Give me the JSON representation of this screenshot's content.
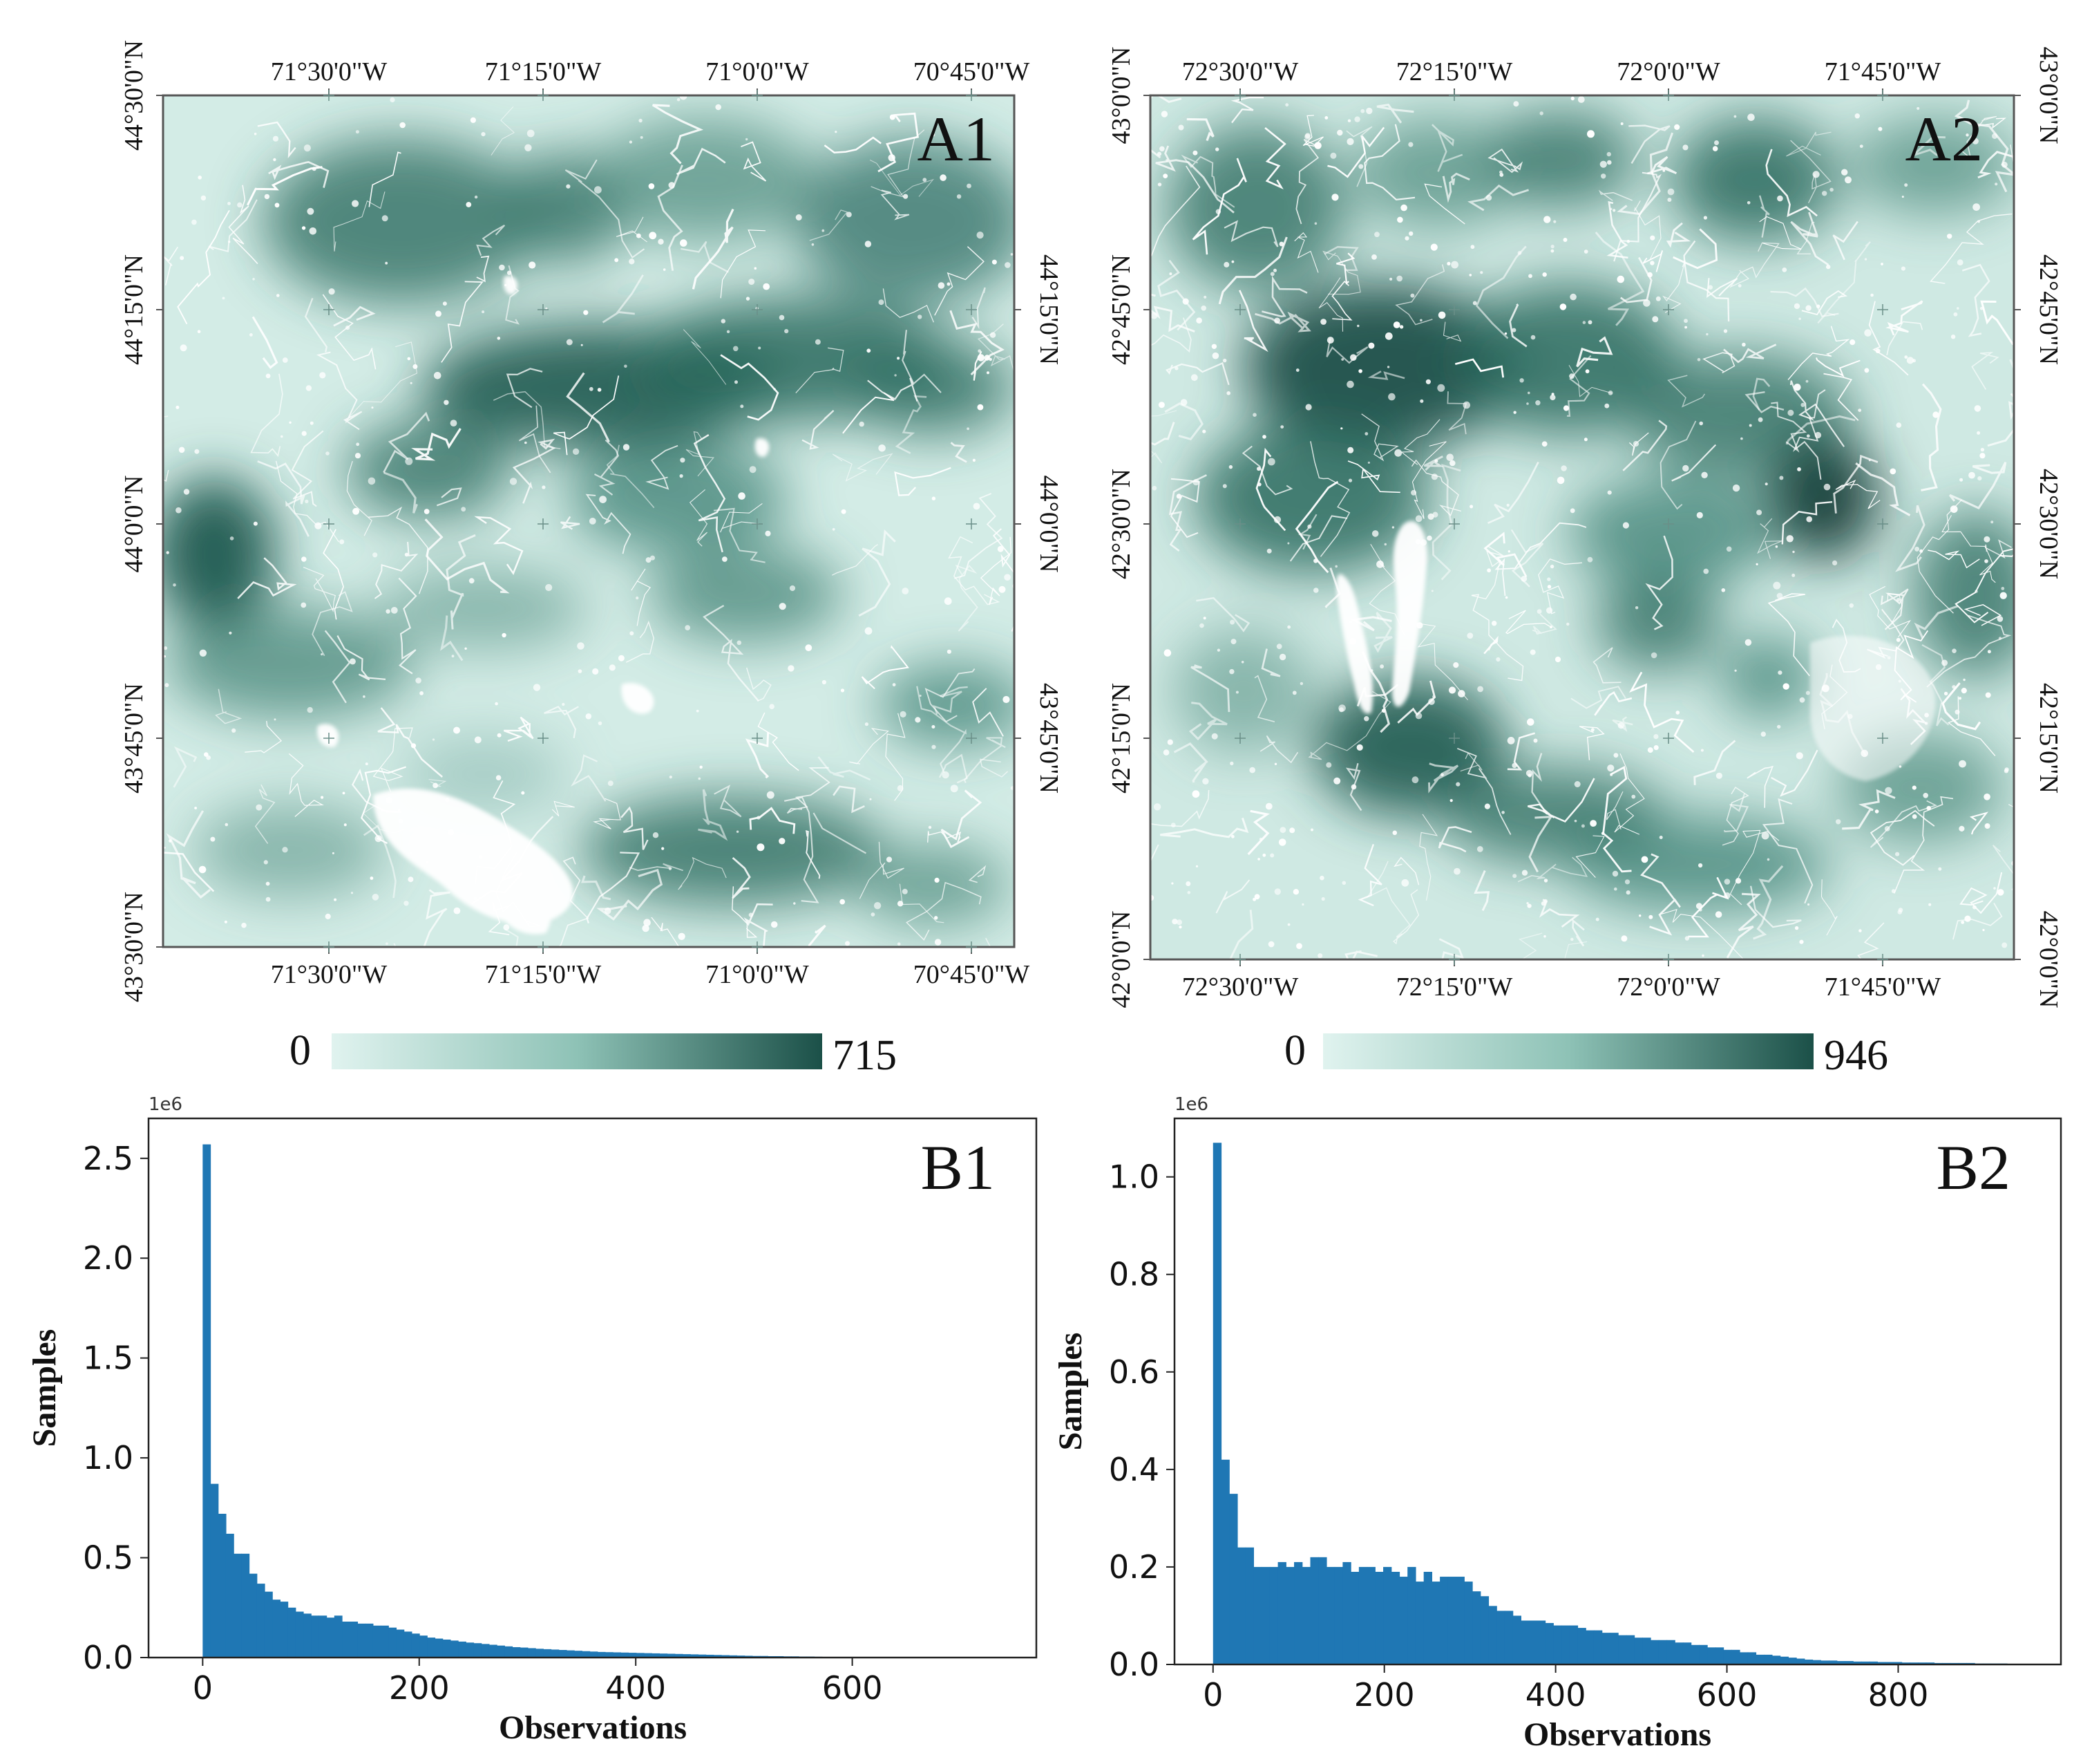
{
  "colors": {
    "map_low": "#e0f3ef",
    "map_high": "#1b5048",
    "bar": "#1f77b4",
    "frame": "#444444"
  },
  "chart_data": [
    {
      "id": "A1",
      "type": "heatmap",
      "panel_label": "A1",
      "x_ticks": [
        "71°30'0\"W",
        "71°15'0\"W",
        "71°0'0\"W",
        "70°45'0\"W"
      ],
      "y_ticks": [
        "44°30'0\"N",
        "44°15'0\"N",
        "44°0'0\"N",
        "43°45'0\"N",
        "43°30'0\"N"
      ],
      "y_ticks_right": [
        "44°15'0\"N",
        "44°0'0\"N",
        "43°45'0\"N"
      ],
      "colorbar": {
        "min": "0",
        "max": "715"
      }
    },
    {
      "id": "A2",
      "type": "heatmap",
      "panel_label": "A2",
      "x_ticks": [
        "72°30'0\"W",
        "72°15'0\"W",
        "72°0'0\"W",
        "71°45'0\"W"
      ],
      "y_ticks": [
        "43°0'0\"N",
        "42°45'0\"N",
        "42°30'0\"N",
        "42°15'0\"N",
        "42°0'0\"N"
      ],
      "y_ticks_right": [
        "43°0'0\"N",
        "42°45'0\"N",
        "42°30'0\"N",
        "42°15'0\"N",
        "42°0'0\"N"
      ],
      "colorbar": {
        "min": "0",
        "max": "946"
      }
    },
    {
      "id": "B1",
      "type": "bar",
      "panel_label": "B1",
      "xlabel": "Observations",
      "ylabel": "Samples",
      "y_multiplier": "1e6",
      "xlim": [
        -50,
        770
      ],
      "ylim": [
        0,
        2.7
      ],
      "x_ticks": [
        0,
        200,
        400,
        600
      ],
      "y_ticks": [
        "0.0",
        "0.5",
        "1.0",
        "1.5",
        "2.0",
        "2.5"
      ],
      "bin_width": 7.15,
      "values": [
        2.57,
        0.87,
        0.72,
        0.62,
        0.52,
        0.52,
        0.42,
        0.37,
        0.33,
        0.29,
        0.28,
        0.25,
        0.23,
        0.22,
        0.21,
        0.21,
        0.2,
        0.21,
        0.18,
        0.18,
        0.17,
        0.17,
        0.16,
        0.16,
        0.15,
        0.14,
        0.13,
        0.12,
        0.11,
        0.1,
        0.095,
        0.09,
        0.085,
        0.08,
        0.075,
        0.072,
        0.068,
        0.064,
        0.06,
        0.056,
        0.052,
        0.05,
        0.047,
        0.044,
        0.042,
        0.04,
        0.038,
        0.036,
        0.034,
        0.032,
        0.03,
        0.028,
        0.027,
        0.026,
        0.025,
        0.024,
        0.023,
        0.022,
        0.021,
        0.02,
        0.019,
        0.018,
        0.017,
        0.016,
        0.015,
        0.014,
        0.013,
        0.012,
        0.011,
        0.01,
        0.009,
        0.008,
        0.008,
        0.007,
        0.007,
        0.006,
        0.006,
        0.005,
        0.005,
        0.004
      ]
    },
    {
      "id": "B2",
      "type": "bar",
      "panel_label": "B2",
      "xlabel": "Observations",
      "ylabel": "Samples",
      "y_multiplier": "1e6",
      "xlim": [
        -45,
        990
      ],
      "ylim": [
        0,
        1.12
      ],
      "x_ticks": [
        0,
        200,
        400,
        600,
        800
      ],
      "y_ticks": [
        "0.0",
        "0.2",
        "0.4",
        "0.6",
        "0.8",
        "1.0"
      ],
      "bin_width": 9.46,
      "values": [
        1.07,
        0.42,
        0.35,
        0.24,
        0.24,
        0.2,
        0.2,
        0.2,
        0.21,
        0.2,
        0.21,
        0.2,
        0.22,
        0.22,
        0.2,
        0.2,
        0.21,
        0.19,
        0.2,
        0.2,
        0.19,
        0.2,
        0.19,
        0.18,
        0.2,
        0.17,
        0.19,
        0.17,
        0.18,
        0.18,
        0.18,
        0.17,
        0.15,
        0.14,
        0.12,
        0.11,
        0.11,
        0.1,
        0.09,
        0.09,
        0.09,
        0.085,
        0.08,
        0.08,
        0.08,
        0.075,
        0.07,
        0.07,
        0.065,
        0.065,
        0.06,
        0.06,
        0.055,
        0.055,
        0.05,
        0.05,
        0.05,
        0.045,
        0.045,
        0.04,
        0.04,
        0.035,
        0.035,
        0.03,
        0.03,
        0.025,
        0.025,
        0.02,
        0.02,
        0.018,
        0.016,
        0.014,
        0.012,
        0.01,
        0.009,
        0.008,
        0.008,
        0.007,
        0.007,
        0.006,
        0.006,
        0.006,
        0.005,
        0.005,
        0.005,
        0.004,
        0.004,
        0.004,
        0.004,
        0.003,
        0.003,
        0.003,
        0.003,
        0.003,
        0.002,
        0.002,
        0.002,
        0.002
      ]
    }
  ]
}
